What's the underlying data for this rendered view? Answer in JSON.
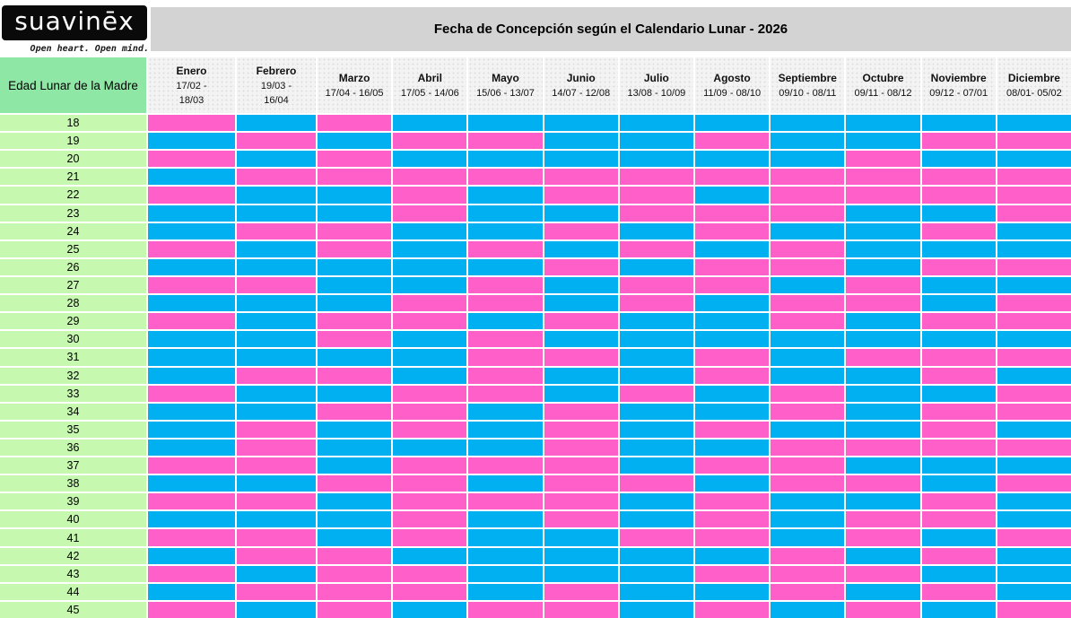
{
  "brand": {
    "logo_text": "suavinēx",
    "tagline": "Open heart. Open mind."
  },
  "colors": {
    "pink_girl": "#FF5FC8",
    "blue_boy": "#00B0F0",
    "age_column_green": "#C6F9AF",
    "header_green": "#8FE7A5",
    "month_header_gray": "#F3F3F3",
    "title_band_gray": "#D3D3D3",
    "logo_black": "#0A0A0A",
    "grid_line_white": "#FFFFFF"
  },
  "chart_data": {
    "type": "heatmap",
    "title": "Fecha de Concepción según el Calendario Lunar - 2026",
    "row_axis_label": "Edad Lunar de la Madre",
    "rows": [
      18,
      19,
      20,
      21,
      22,
      23,
      24,
      25,
      26,
      27,
      28,
      29,
      30,
      31,
      32,
      33,
      34,
      35,
      36,
      37,
      38,
      39,
      40,
      41,
      42,
      43,
      44,
      45
    ],
    "columns": [
      {
        "name": "Enero",
        "range": "17/02 -\n18/03"
      },
      {
        "name": "Febrero",
        "range": "19/03 -\n16/04"
      },
      {
        "name": "Marzo",
        "range": "17/04 - 16/05"
      },
      {
        "name": "Abril",
        "range": "17/05 - 14/06"
      },
      {
        "name": "Mayo",
        "range": "15/06 - 13/07"
      },
      {
        "name": "Junio",
        "range": "14/07 - 12/08"
      },
      {
        "name": "Julio",
        "range": "13/08 - 10/09"
      },
      {
        "name": "Agosto",
        "range": "11/09 - 08/10"
      },
      {
        "name": "Septiembre",
        "range": "09/10 - 08/11"
      },
      {
        "name": "Octubre",
        "range": "09/11 - 08/12"
      },
      {
        "name": "Noviembre",
        "range": "09/12 - 07/01"
      },
      {
        "name": "Diciembre",
        "range": "08/01- 05/02"
      }
    ],
    "value_colors": {
      "P": "#FF5FC8",
      "B": "#00B0F0"
    },
    "cell_values": [
      "PBPBBBBBBBBB",
      "BPBPPBBPBBPP",
      "PBPBBBBBBPBB",
      "BPPPPPPPPPPP",
      "PBBPBPPBPPPP",
      "BBBPBBPPPBBP",
      "BPPBBPBPBBPB",
      "PBPBPBPBPBBB",
      "BBBBBPBPPBPP",
      "PPBBPBPPBPBB",
      "BBBPPBPBPPBP",
      "PBPPBPBBPBPP",
      "BBPBPBBBBBBB",
      "BBBBPPBPBPPP",
      "BPPBPBBPBBPB",
      "PBBPPBPBPBBP",
      "BBPPBPBBPBPP",
      "BPBPBPBPBBPB",
      "BPBBBPBBPPPP",
      "PPBPPPBPPBBB",
      "BBPPBPPBPPBP",
      "PPBPPPBPBBPB",
      "BBBPBPBPBPPB",
      "PPBPBBPPBPBP",
      "BPPBBBBBPBPB",
      "PBPPBBBPPPBB",
      "BPPPBPBBPBPB",
      "PBPBPPBPBPBP"
    ]
  }
}
